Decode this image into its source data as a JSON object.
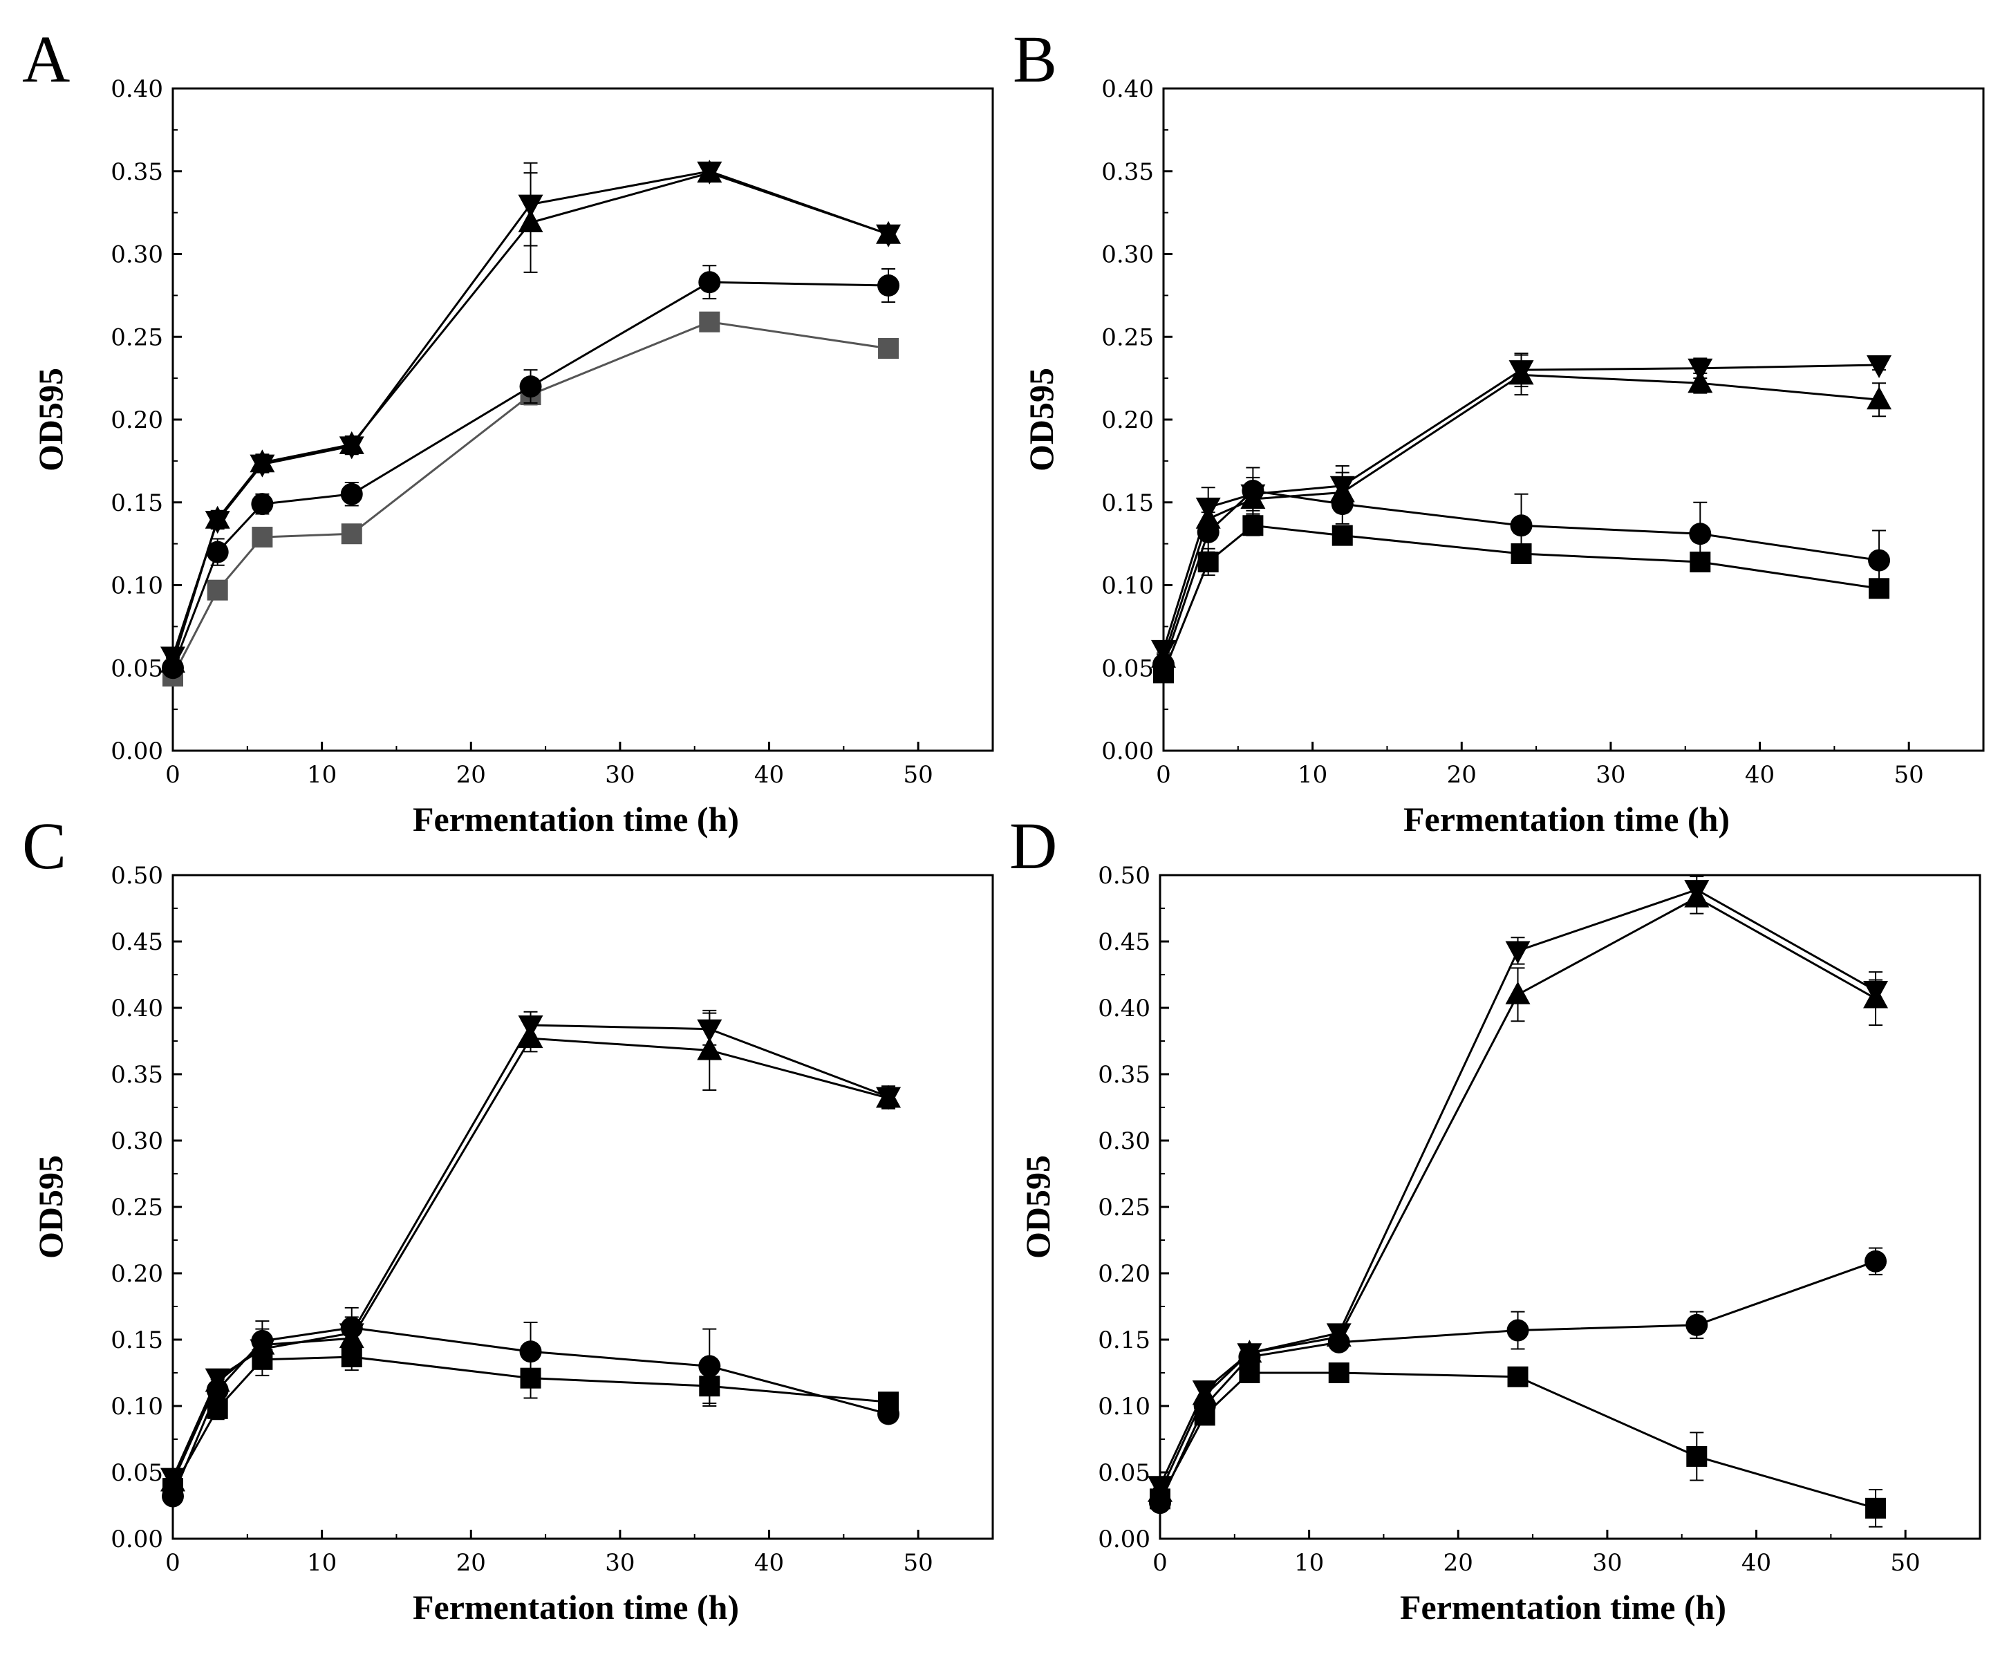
{
  "chart_data": [
    {
      "type": "line",
      "panel_label": "A",
      "xlabel": "Fermentation time (h)",
      "ylabel": "OD595",
      "xlim": [
        0,
        55
      ],
      "ylim": [
        0,
        0.4
      ],
      "xticks": [
        "0",
        "10",
        "20",
        "30",
        "40",
        "50"
      ],
      "yticks": [
        "0.00",
        "0.05",
        "0.10",
        "0.15",
        "0.20",
        "0.25",
        "0.30",
        "0.35",
        "0.40"
      ],
      "x": [
        0,
        3,
        6,
        12,
        24,
        36,
        48
      ],
      "series": [
        {
          "name": "square",
          "marker": "square",
          "color": "#555555",
          "values": [
            0.045,
            0.097,
            0.129,
            0.131,
            0.215,
            0.259,
            0.243
          ],
          "errors": [
            0.003,
            0.004,
            0.004,
            0.003,
            0.006,
            0.005,
            0.005
          ]
        },
        {
          "name": "circle",
          "marker": "circle",
          "color": "#000000",
          "values": [
            0.05,
            0.12,
            0.149,
            0.155,
            0.22,
            0.283,
            0.281
          ],
          "errors": [
            0.003,
            0.008,
            0.006,
            0.007,
            0.01,
            0.01,
            0.01
          ]
        },
        {
          "name": "triangle-up",
          "marker": "triangle-up",
          "color": "#000000",
          "values": [
            0.053,
            0.14,
            0.174,
            0.185,
            0.319,
            0.349,
            0.312
          ],
          "errors": [
            0.003,
            0.005,
            0.005,
            0.005,
            0.03,
            0.003,
            0.004
          ]
        },
        {
          "name": "triangle-down",
          "marker": "triangle-down",
          "color": "#000000",
          "values": [
            0.057,
            0.139,
            0.173,
            0.184,
            0.33,
            0.35,
            0.312
          ],
          "errors": [
            0.003,
            0.005,
            0.005,
            0.005,
            0.025,
            0.003,
            0.004
          ]
        }
      ]
    },
    {
      "type": "line",
      "panel_label": "B",
      "xlabel": "Fermentation time (h)",
      "ylabel": "OD595",
      "xlim": [
        0,
        55
      ],
      "ylim": [
        0,
        0.4
      ],
      "xticks": [
        "0",
        "10",
        "20",
        "30",
        "40",
        "50"
      ],
      "yticks": [
        "0.00",
        "0.05",
        "0.10",
        "0.15",
        "0.20",
        "0.25",
        "0.30",
        "0.35",
        "0.40"
      ],
      "x": [
        0,
        3,
        6,
        12,
        24,
        36,
        48
      ],
      "series": [
        {
          "name": "square",
          "marker": "square",
          "color": "#000000",
          "values": [
            0.047,
            0.114,
            0.136,
            0.13,
            0.119,
            0.114,
            0.098
          ],
          "errors": [
            0.003,
            0.008,
            0.006,
            0.004,
            0.004,
            0.004,
            0.003
          ]
        },
        {
          "name": "circle",
          "marker": "circle",
          "color": "#000000",
          "values": [
            0.052,
            0.132,
            0.157,
            0.149,
            0.136,
            0.131,
            0.115
          ],
          "errors": [
            0.003,
            0.012,
            0.014,
            0.012,
            0.019,
            0.019,
            0.018
          ]
        },
        {
          "name": "triangle-up",
          "marker": "triangle-up",
          "color": "#000000",
          "values": [
            0.056,
            0.14,
            0.152,
            0.156,
            0.227,
            0.222,
            0.212
          ],
          "errors": [
            0.003,
            0.012,
            0.01,
            0.012,
            0.012,
            0.006,
            0.01
          ]
        },
        {
          "name": "triangle-down",
          "marker": "triangle-down",
          "color": "#000000",
          "values": [
            0.061,
            0.147,
            0.155,
            0.16,
            0.23,
            0.231,
            0.233
          ],
          "errors": [
            0.003,
            0.012,
            0.01,
            0.012,
            0.01,
            0.006,
            0.003
          ]
        }
      ]
    },
    {
      "type": "line",
      "panel_label": "C",
      "xlabel": "Fermentation time (h)",
      "ylabel": "OD595",
      "xlim": [
        0,
        55
      ],
      "ylim": [
        0,
        0.5
      ],
      "xticks": [
        "0",
        "10",
        "20",
        "30",
        "40",
        "50"
      ],
      "yticks": [
        "0.00",
        "0.05",
        "0.10",
        "0.15",
        "0.20",
        "0.25",
        "0.30",
        "0.35",
        "0.40",
        "0.45",
        "0.50"
      ],
      "x": [
        0,
        3,
        6,
        12,
        24,
        36,
        48
      ],
      "series": [
        {
          "name": "square",
          "marker": "square",
          "color": "#000000",
          "values": [
            0.038,
            0.098,
            0.135,
            0.137,
            0.121,
            0.115,
            0.103
          ],
          "errors": [
            0.003,
            0.008,
            0.012,
            0.01,
            0.015,
            0.015,
            0.005
          ]
        },
        {
          "name": "circle",
          "marker": "circle",
          "color": "#000000",
          "values": [
            0.032,
            0.112,
            0.149,
            0.159,
            0.141,
            0.13,
            0.094
          ],
          "errors": [
            0.003,
            0.008,
            0.015,
            0.015,
            0.022,
            0.028,
            0.005
          ]
        },
        {
          "name": "triangle-up",
          "marker": "triangle-up",
          "color": "#000000",
          "values": [
            0.043,
            0.118,
            0.146,
            0.151,
            0.377,
            0.368,
            0.332
          ],
          "errors": [
            0.003,
            0.006,
            0.012,
            0.012,
            0.01,
            0.03,
            0.008
          ]
        },
        {
          "name": "triangle-down",
          "marker": "triangle-down",
          "color": "#000000",
          "values": [
            0.046,
            0.121,
            0.143,
            0.155,
            0.387,
            0.384,
            0.333
          ],
          "errors": [
            0.003,
            0.006,
            0.012,
            0.012,
            0.01,
            0.012,
            0.008
          ]
        }
      ]
    },
    {
      "type": "line",
      "panel_label": "D",
      "xlabel": "Fermentation time (h)",
      "ylabel": "OD595",
      "xlim": [
        0,
        55
      ],
      "ylim": [
        0,
        0.5
      ],
      "xticks": [
        "0",
        "10",
        "20",
        "30",
        "40",
        "50"
      ],
      "yticks": [
        "0.00",
        "0.05",
        "0.10",
        "0.15",
        "0.20",
        "0.25",
        "0.30",
        "0.35",
        "0.40",
        "0.45",
        "0.50"
      ],
      "x": [
        0,
        3,
        6,
        12,
        24,
        36,
        48
      ],
      "series": [
        {
          "name": "square",
          "marker": "square",
          "color": "#000000",
          "values": [
            0.03,
            0.093,
            0.125,
            0.125,
            0.122,
            0.062,
            0.023
          ],
          "errors": [
            0.003,
            0.005,
            0.004,
            0.003,
            0.004,
            0.018,
            0.014
          ]
        },
        {
          "name": "circle",
          "marker": "circle",
          "color": "#000000",
          "values": [
            0.027,
            0.1,
            0.137,
            0.148,
            0.157,
            0.161,
            0.209
          ],
          "errors": [
            0.003,
            0.005,
            0.005,
            0.005,
            0.014,
            0.01,
            0.01
          ]
        },
        {
          "name": "triangle-up",
          "marker": "triangle-up",
          "color": "#000000",
          "values": [
            0.035,
            0.108,
            0.14,
            0.152,
            0.41,
            0.483,
            0.407
          ],
          "errors": [
            0.003,
            0.005,
            0.005,
            0.005,
            0.02,
            0.012,
            0.02
          ]
        },
        {
          "name": "triangle-down",
          "marker": "triangle-down",
          "color": "#000000",
          "values": [
            0.04,
            0.112,
            0.14,
            0.155,
            0.443,
            0.489,
            0.413
          ],
          "errors": [
            0.003,
            0.005,
            0.005,
            0.005,
            0.01,
            0.01,
            0.008
          ]
        }
      ]
    }
  ]
}
